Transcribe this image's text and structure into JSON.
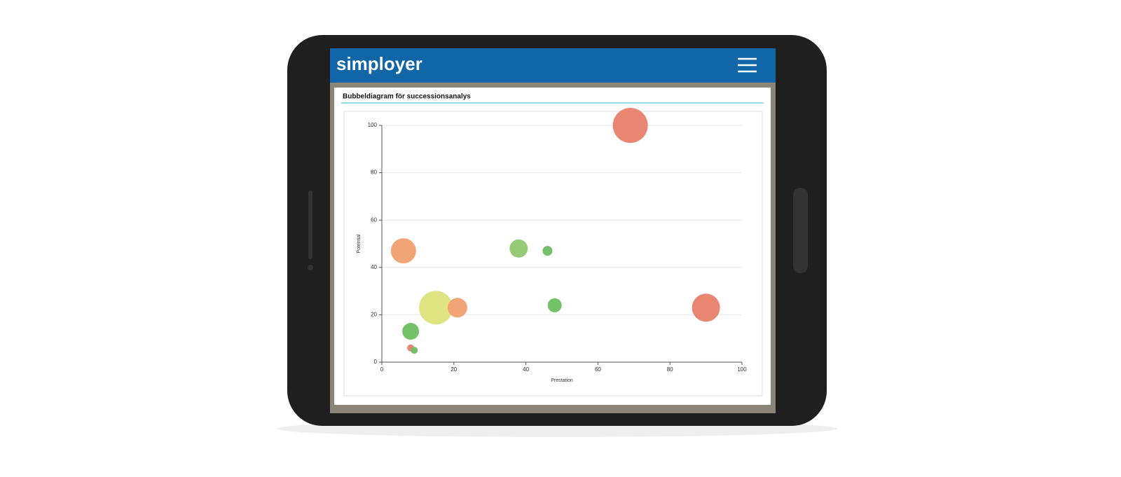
{
  "header": {
    "logo": "simployer"
  },
  "chart_data": {
    "type": "bubble",
    "title": "Bubbeldiagram för successionsanalys",
    "x_label": "Prestation",
    "y_label": "Potential",
    "x": [
      69,
      6,
      38,
      46,
      15,
      21,
      48,
      90,
      8,
      8,
      9
    ],
    "values": [
      100,
      47,
      48,
      47,
      23,
      23,
      24,
      23,
      13,
      6,
      5
    ],
    "sizes": [
      25,
      18,
      13,
      7,
      24,
      14,
      10,
      20,
      12,
      5,
      5
    ],
    "colors": [
      "#e8806a",
      "#f0a070",
      "#8fc870",
      "#6cbf5f",
      "#dde27a",
      "#f0a070",
      "#6cbf5f",
      "#e8806a",
      "#6cbf5f",
      "#e8806a",
      "#6cbf5f"
    ],
    "xlim": [
      0,
      100
    ],
    "ylim": [
      0,
      100
    ],
    "xticks": [
      0,
      20,
      40,
      60,
      80,
      100
    ],
    "yticks": [
      0,
      20,
      40,
      60,
      80,
      100
    ],
    "grid": true
  }
}
